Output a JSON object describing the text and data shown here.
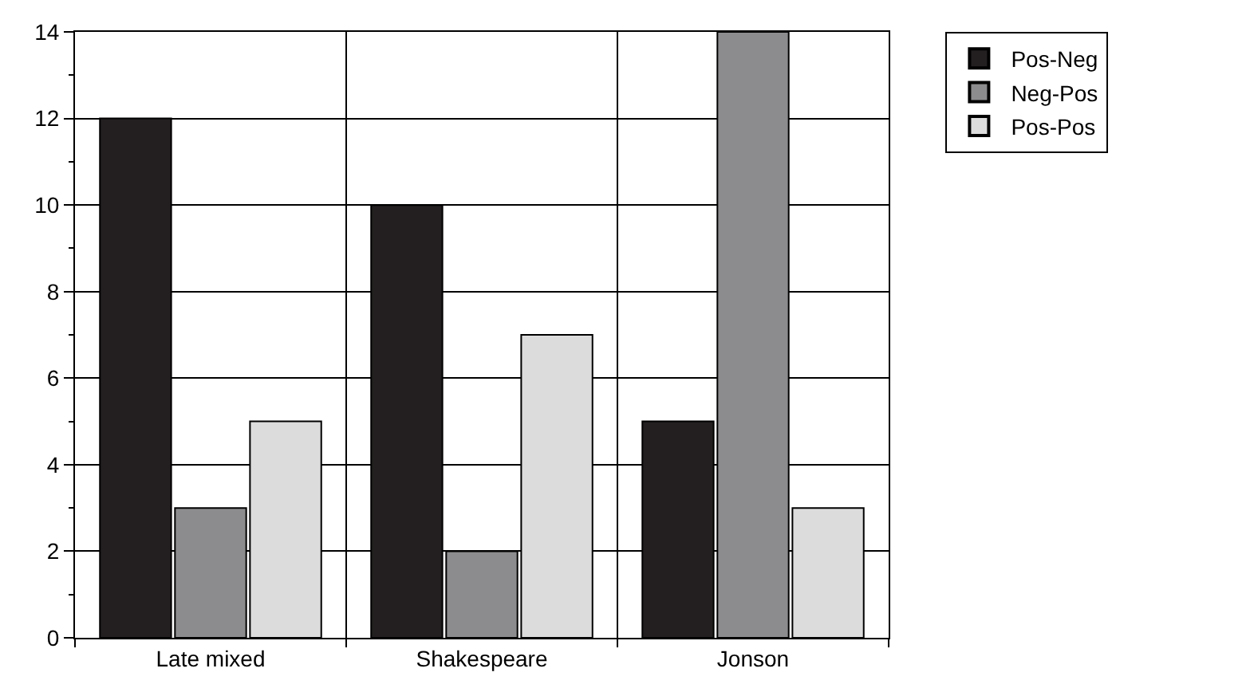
{
  "chart_data": {
    "type": "bar",
    "categories": [
      "Late mixed",
      "Shakespeare",
      "Jonson"
    ],
    "series": [
      {
        "name": "Pos-Neg",
        "color": "#231f20",
        "values": [
          12,
          10,
          5
        ]
      },
      {
        "name": "Neg-Pos",
        "color": "#8c8c8e",
        "values": [
          3,
          2,
          14
        ]
      },
      {
        "name": "Pos-Pos",
        "color": "#dcdcdc",
        "values": [
          5,
          7,
          3
        ]
      }
    ],
    "ylim": [
      0,
      14
    ],
    "yticks": [
      0,
      2,
      4,
      6,
      8,
      10,
      12,
      14
    ],
    "grid": true,
    "legend": "top right"
  }
}
